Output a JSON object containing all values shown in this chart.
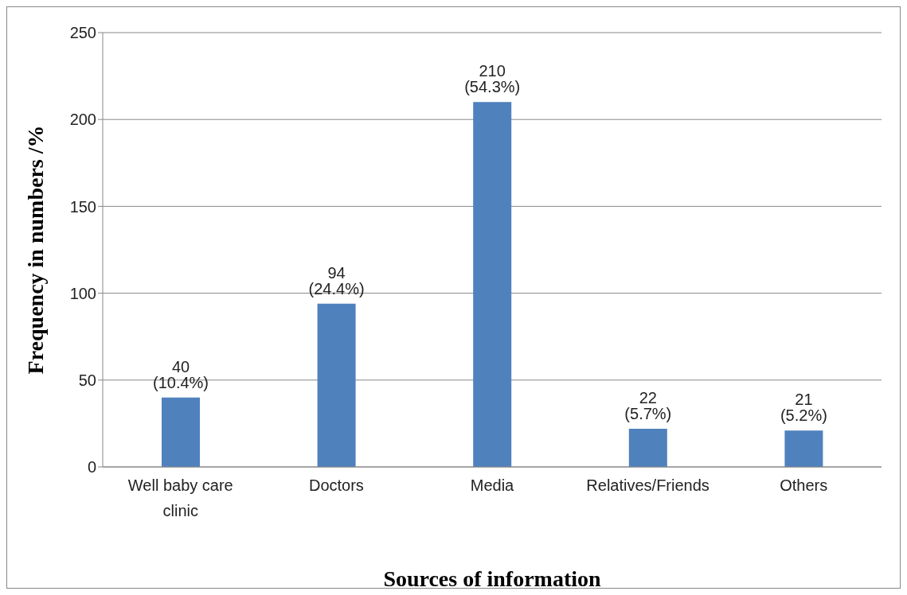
{
  "chart_data": {
    "type": "bar",
    "xlabel": "Sources of information",
    "ylabel": "Frequency in numbers /%",
    "categories": [
      "Well baby care clinic",
      "Doctors",
      "Media",
      "Relatives/Friends",
      "Others"
    ],
    "values": [
      40,
      94,
      210,
      22,
      21
    ],
    "value_labels": [
      "40 (10.4%)",
      "94 (24.4%)",
      "210 (54.3%)",
      "22 (5.7%)",
      "21 (5.2%)"
    ],
    "color": "#4f81bd",
    "ylim": [
      0,
      250
    ],
    "yticks": [
      0,
      50,
      100,
      150,
      200,
      250
    ],
    "grid": "y",
    "legend": false
  }
}
